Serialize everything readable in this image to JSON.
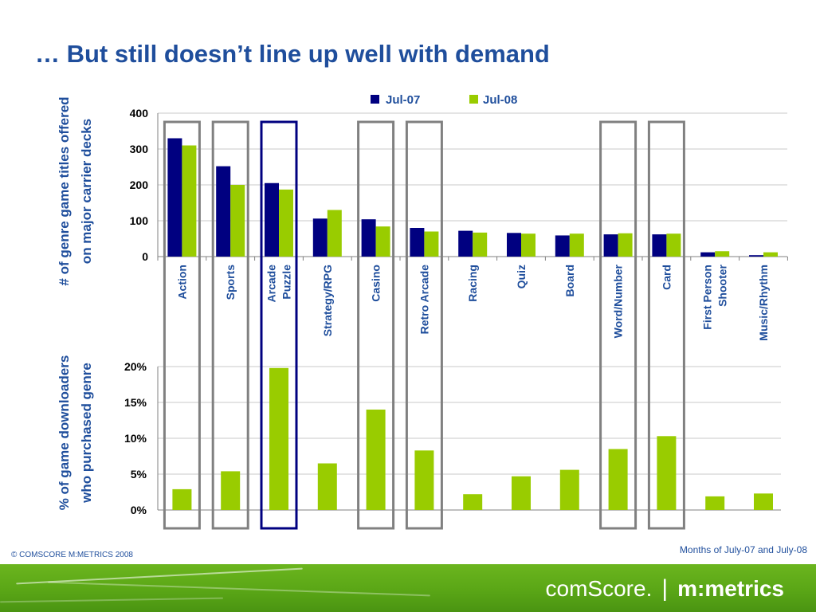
{
  "slide": {
    "title": "… But still doesn’t line up well with demand",
    "copyright": "© COMSCORE M:METRICS 2008",
    "footnote": "Months of July-07 and July-08"
  },
  "brand": {
    "left": "comScore.",
    "separator": "|",
    "right": "m:metrics"
  },
  "colors": {
    "jul07": "#000080",
    "jul08": "#99cc00",
    "title": "#1f4e9c",
    "highlight": "#808080",
    "highlight_strong": "#000080"
  },
  "chart_data": [
    {
      "type": "bar",
      "ylabel_line1": "# of genre game titles offered",
      "ylabel_line2": "on major carrier decks",
      "ylim": [
        0,
        400
      ],
      "yticks": [
        "0",
        "100",
        "200",
        "300",
        "400"
      ],
      "grid": true,
      "legend_position": "top",
      "categories": [
        [
          "Action"
        ],
        [
          "Sports"
        ],
        [
          "Arcade",
          "Puzzle"
        ],
        [
          "Strategy/RPG"
        ],
        [
          "Casino"
        ],
        [
          "Retro Arcade"
        ],
        [
          "Racing"
        ],
        [
          "Quiz"
        ],
        [
          "Board"
        ],
        [
          "Word/Number"
        ],
        [
          "Card"
        ],
        [
          "First Person",
          "Shooter"
        ],
        [
          "Music/Rhythm"
        ]
      ],
      "series": [
        {
          "name": "Jul-07",
          "color": "#000080",
          "values": [
            330,
            252,
            205,
            106,
            104,
            80,
            72,
            66,
            59,
            62,
            62,
            12,
            4
          ]
        },
        {
          "name": "Jul-08",
          "color": "#99cc00",
          "values": [
            310,
            200,
            187,
            130,
            84,
            70,
            67,
            64,
            64,
            65,
            64,
            15,
            12
          ]
        }
      ]
    },
    {
      "type": "bar",
      "ylabel_line1": "% of game downloaders",
      "ylabel_line2": "who purchased genre",
      "ylim": [
        0,
        20
      ],
      "yticks": [
        "0%",
        "5%",
        "10%",
        "15%",
        "20%"
      ],
      "grid": true,
      "values": [
        2.9,
        5.4,
        19.8,
        6.5,
        14.0,
        8.3,
        2.2,
        4.7,
        5.6,
        8.5,
        10.3,
        1.9,
        2.3
      ]
    }
  ],
  "highlights": [
    "Action",
    "Sports",
    "Arcade Puzzle",
    "Casino",
    "Retro Arcade",
    "Word/Number",
    "Card"
  ]
}
